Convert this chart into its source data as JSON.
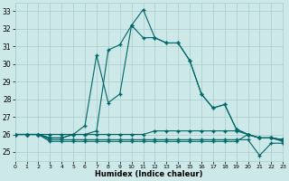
{
  "xlabel": "Humidex (Indice chaleur)",
  "background_color": "#cce8e8",
  "line_color": "#006666",
  "grid_color": "#aacccc",
  "x": [
    0,
    1,
    2,
    3,
    4,
    5,
    6,
    7,
    8,
    9,
    10,
    11,
    12,
    13,
    14,
    15,
    16,
    17,
    18,
    19,
    20,
    21,
    22,
    23
  ],
  "series1": [
    26.0,
    26.0,
    26.0,
    26.0,
    26.0,
    26.0,
    26.5,
    30.5,
    27.8,
    28.3,
    32.2,
    33.1,
    31.5,
    31.2,
    31.2,
    30.2,
    28.3,
    27.5,
    27.7,
    26.3,
    26.0,
    25.8,
    25.8,
    25.7
  ],
  "series2": [
    26.0,
    26.0,
    26.0,
    25.8,
    25.8,
    26.0,
    26.0,
    26.2,
    30.8,
    31.1,
    32.2,
    31.5,
    31.5,
    31.2,
    31.2,
    30.2,
    28.3,
    27.5,
    27.7,
    26.3,
    26.0,
    25.8,
    25.8,
    25.7
  ],
  "series3": [
    26.0,
    26.0,
    26.0,
    25.8,
    25.8,
    26.0,
    26.0,
    26.0,
    26.0,
    26.0,
    26.0,
    26.0,
    26.2,
    26.2,
    26.2,
    26.2,
    26.2,
    26.2,
    26.2,
    26.2,
    26.0,
    25.8,
    25.8,
    25.7
  ],
  "series4": [
    26.0,
    26.0,
    26.0,
    25.7,
    25.7,
    25.7,
    25.7,
    25.7,
    25.7,
    25.7,
    25.7,
    25.7,
    25.7,
    25.7,
    25.7,
    25.7,
    25.7,
    25.7,
    25.7,
    25.7,
    25.7,
    24.8,
    25.5,
    25.5
  ],
  "series5": [
    26.0,
    26.0,
    26.0,
    25.6,
    25.6,
    25.6,
    25.6,
    25.6,
    25.6,
    25.6,
    25.6,
    25.6,
    25.6,
    25.6,
    25.6,
    25.6,
    25.6,
    25.6,
    25.6,
    25.6,
    26.0,
    25.8,
    25.8,
    25.6
  ],
  "xlim": [
    0,
    23
  ],
  "ylim": [
    24.5,
    33.5
  ],
  "yticks": [
    25,
    26,
    27,
    28,
    29,
    30,
    31,
    32,
    33
  ],
  "xticks": [
    0,
    1,
    2,
    3,
    4,
    5,
    6,
    7,
    8,
    9,
    10,
    11,
    12,
    13,
    14,
    15,
    16,
    17,
    18,
    19,
    20,
    21,
    22,
    23
  ]
}
